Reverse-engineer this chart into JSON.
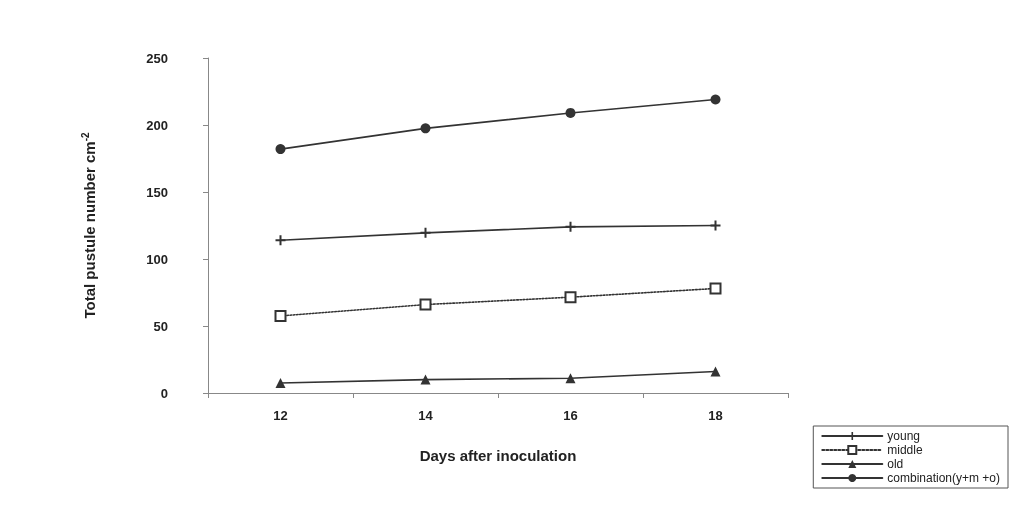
{
  "chart_data": {
    "type": "line",
    "xlabel": "Days after inoculation",
    "ylabel": "Total pustule number cm$^{-2}$",
    "categories": [
      "12",
      "14",
      "16",
      "18"
    ],
    "series": [
      {
        "name": "young",
        "color": "#333333",
        "marker": "cross",
        "line_style": "solid",
        "values": [
          114,
          119.5,
          124,
          125
        ]
      },
      {
        "name": "middle",
        "color": "#333333",
        "marker": "square",
        "line_style": "dotted",
        "values": [
          57.5,
          66,
          71.5,
          78
        ]
      },
      {
        "name": "old",
        "color": "#333333",
        "marker": "triangle",
        "line_style": "solid",
        "values": [
          7.5,
          10,
          11,
          16
        ]
      },
      {
        "name": "combination(y+m +o)",
        "color": "#333333",
        "marker": "circle",
        "line_style": "solid",
        "values": [
          182,
          197.5,
          209,
          219
        ]
      }
    ],
    "ylim": [
      0,
      250
    ],
    "yticks": [
      0,
      50,
      100,
      150,
      200,
      250
    ],
    "grid": false,
    "legend": "bottom right"
  }
}
